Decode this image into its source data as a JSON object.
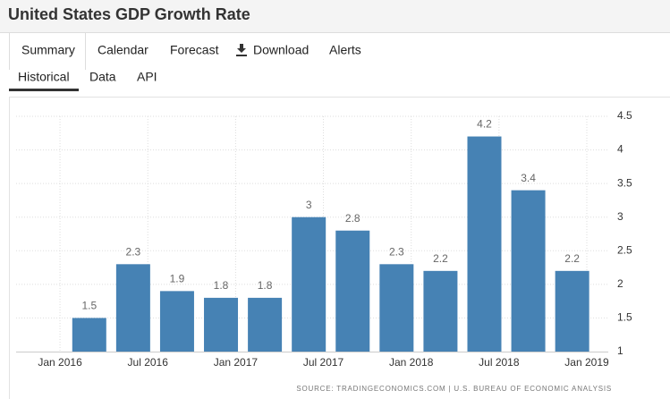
{
  "title": "United States GDP Growth Rate",
  "tabs": [
    "Summary",
    "Calendar",
    "Forecast",
    "Download",
    "Alerts"
  ],
  "subtabs": [
    "Historical",
    "Data",
    "API"
  ],
  "source": "SOURCE: TRADINGECONOMICS.COM | U.S. BUREAU OF ECONOMIC ANALYSIS",
  "chart_data": {
    "type": "bar",
    "x": [
      "2016-03",
      "2016-06",
      "2016-09",
      "2016-12",
      "2017-03",
      "2017-06",
      "2017-09",
      "2017-12",
      "2018-03",
      "2018-06",
      "2018-09",
      "2018-12"
    ],
    "values": [
      1.5,
      2.3,
      1.9,
      1.8,
      1.8,
      3,
      2.8,
      2.3,
      2.2,
      4.2,
      3.4,
      2.2
    ],
    "color": "#4682b4",
    "xlim": [
      "2015-10-01",
      "2019-02-15"
    ],
    "xticks": [
      {
        "value": "2016-01",
        "label": "Jan 2016"
      },
      {
        "value": "2016-07",
        "label": "Jul 2016"
      },
      {
        "value": "2017-01",
        "label": "Jan 2017"
      },
      {
        "value": "2017-07",
        "label": "Jul 2017"
      },
      {
        "value": "2018-01",
        "label": "Jan 2018"
      },
      {
        "value": "2018-07",
        "label": "Jul 2018"
      },
      {
        "value": "2019-01",
        "label": "Jan 2019"
      }
    ],
    "ylim": [
      1,
      4.5
    ],
    "yticks": [
      1,
      1.5,
      2,
      2.5,
      3,
      3.5,
      4,
      4.5
    ],
    "grid": true
  }
}
